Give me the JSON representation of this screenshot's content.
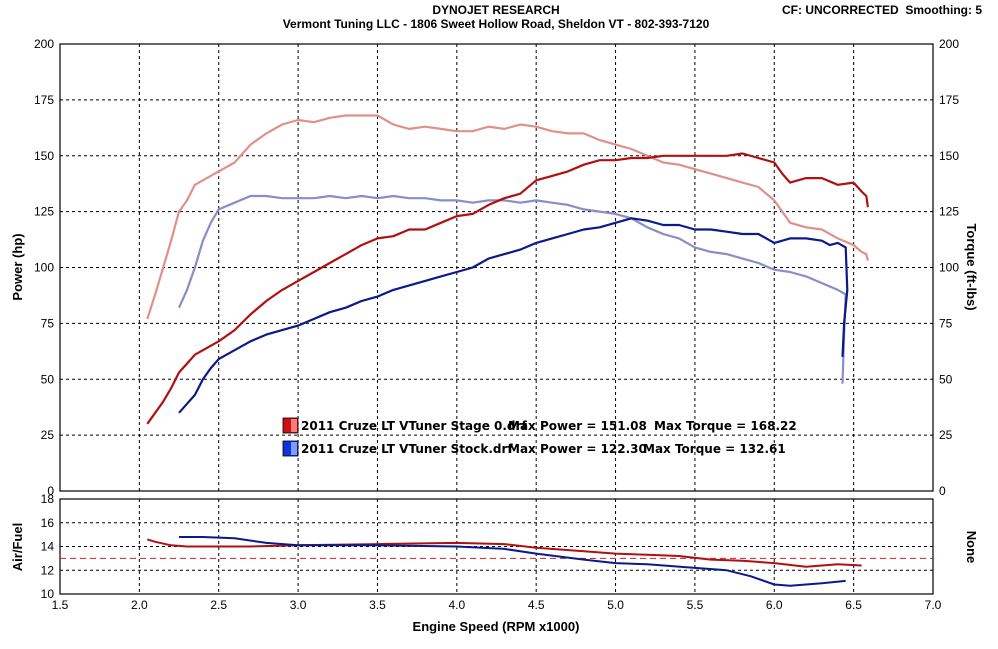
{
  "header": {
    "brand": "DYNOJET RESEARCH",
    "shop": "Vermont Tuning LLC - 1806 Sweet Hollow Road, Sheldon VT - 802-393-7120",
    "correction": "CF: UNCORRECTED  Smoothing: 5"
  },
  "colors": {
    "stage0_power": "#b01010",
    "stage0_torque": "#e0908a",
    "stock_power": "#0a1a8a",
    "stock_torque": "#8a8cc8",
    "afr_ref": "#cc2222",
    "grid": "#000000"
  },
  "chart_data": [
    {
      "type": "line",
      "title": "",
      "xlabel": "",
      "ylabel": "Power (hp)",
      "y2label": "Torque (ft-lbs)",
      "xlim": [
        1.5,
        7.0
      ],
      "ylim": [
        0,
        200
      ],
      "y2lim": [
        0,
        200
      ],
      "xticks": [
        1.5,
        2.0,
        2.5,
        3.0,
        3.5,
        4.0,
        4.5,
        5.0,
        5.5,
        6.0,
        6.5,
        7.0
      ],
      "yticks": [
        0,
        25,
        50,
        75,
        100,
        125,
        150,
        175,
        200
      ],
      "grid": true,
      "legend": [
        {
          "file": "2011 Cruze LT VTuner Stage 0.drf",
          "max_power": "Max Power = 151.08",
          "max_torque": "Max Torque = 168.22"
        },
        {
          "file": "2011 Cruze LT VTuner Stock.drf",
          "max_power": "Max Power = 122.30",
          "max_torque": "Max Torque = 132.61"
        }
      ],
      "series": [
        {
          "key": "stage0_power",
          "points": [
            [
              2.05,
              30
            ],
            [
              2.1,
              35
            ],
            [
              2.15,
              40
            ],
            [
              2.2,
              46
            ],
            [
              2.25,
              53
            ],
            [
              2.3,
              57
            ],
            [
              2.35,
              61
            ],
            [
              2.4,
              63
            ],
            [
              2.5,
              67
            ],
            [
              2.6,
              72
            ],
            [
              2.7,
              79
            ],
            [
              2.8,
              85
            ],
            [
              2.9,
              90
            ],
            [
              3.0,
              94
            ],
            [
              3.1,
              98
            ],
            [
              3.2,
              102
            ],
            [
              3.3,
              106
            ],
            [
              3.4,
              110
            ],
            [
              3.5,
              113
            ],
            [
              3.6,
              114
            ],
            [
              3.7,
              117
            ],
            [
              3.8,
              117
            ],
            [
              3.9,
              120
            ],
            [
              4.0,
              123
            ],
            [
              4.1,
              124
            ],
            [
              4.2,
              128
            ],
            [
              4.3,
              131
            ],
            [
              4.4,
              133
            ],
            [
              4.5,
              139
            ],
            [
              4.6,
              141
            ],
            [
              4.7,
              143
            ],
            [
              4.8,
              146
            ],
            [
              4.9,
              148
            ],
            [
              5.0,
              148
            ],
            [
              5.1,
              149
            ],
            [
              5.2,
              149
            ],
            [
              5.3,
              150
            ],
            [
              5.4,
              150
            ],
            [
              5.5,
              150
            ],
            [
              5.6,
              150
            ],
            [
              5.7,
              150
            ],
            [
              5.8,
              151
            ],
            [
              5.9,
              149
            ],
            [
              6.0,
              147
            ],
            [
              6.05,
              142
            ],
            [
              6.1,
              138
            ],
            [
              6.2,
              140
            ],
            [
              6.3,
              140
            ],
            [
              6.4,
              137
            ],
            [
              6.5,
              138
            ],
            [
              6.55,
              134
            ],
            [
              6.58,
              132
            ],
            [
              6.59,
              127
            ]
          ]
        },
        {
          "key": "stage0_torque",
          "points": [
            [
              2.05,
              77
            ],
            [
              2.1,
              88
            ],
            [
              2.15,
              100
            ],
            [
              2.2,
              112
            ],
            [
              2.25,
              125
            ],
            [
              2.3,
              130
            ],
            [
              2.35,
              137
            ],
            [
              2.4,
              139
            ],
            [
              2.5,
              143
            ],
            [
              2.6,
              147
            ],
            [
              2.7,
              155
            ],
            [
              2.8,
              160
            ],
            [
              2.9,
              164
            ],
            [
              3.0,
              166
            ],
            [
              3.1,
              165
            ],
            [
              3.2,
              167
            ],
            [
              3.3,
              168
            ],
            [
              3.4,
              168
            ],
            [
              3.5,
              168
            ],
            [
              3.6,
              164
            ],
            [
              3.7,
              162
            ],
            [
              3.8,
              163
            ],
            [
              3.9,
              162
            ],
            [
              4.0,
              161
            ],
            [
              4.1,
              161
            ],
            [
              4.2,
              163
            ],
            [
              4.3,
              162
            ],
            [
              4.4,
              164
            ],
            [
              4.5,
              163
            ],
            [
              4.6,
              161
            ],
            [
              4.7,
              160
            ],
            [
              4.8,
              160
            ],
            [
              4.9,
              157
            ],
            [
              5.0,
              155
            ],
            [
              5.1,
              153
            ],
            [
              5.2,
              150
            ],
            [
              5.3,
              147
            ],
            [
              5.4,
              146
            ],
            [
              5.5,
              144
            ],
            [
              5.6,
              142
            ],
            [
              5.7,
              140
            ],
            [
              5.8,
              138
            ],
            [
              5.9,
              136
            ],
            [
              6.0,
              130
            ],
            [
              6.05,
              125
            ],
            [
              6.1,
              120
            ],
            [
              6.2,
              118
            ],
            [
              6.3,
              117
            ],
            [
              6.4,
              113
            ],
            [
              6.5,
              110
            ],
            [
              6.55,
              107
            ],
            [
              6.58,
              106
            ],
            [
              6.59,
              103
            ]
          ]
        },
        {
          "key": "stock_power",
          "points": [
            [
              2.25,
              35
            ],
            [
              2.3,
              39
            ],
            [
              2.35,
              43
            ],
            [
              2.4,
              50
            ],
            [
              2.45,
              55
            ],
            [
              2.5,
              59
            ],
            [
              2.6,
              63
            ],
            [
              2.7,
              67
            ],
            [
              2.8,
              70
            ],
            [
              2.9,
              72
            ],
            [
              3.0,
              74
            ],
            [
              3.1,
              77
            ],
            [
              3.2,
              80
            ],
            [
              3.3,
              82
            ],
            [
              3.4,
              85
            ],
            [
              3.5,
              87
            ],
            [
              3.6,
              90
            ],
            [
              3.7,
              92
            ],
            [
              3.8,
              94
            ],
            [
              3.9,
              96
            ],
            [
              4.0,
              98
            ],
            [
              4.1,
              100
            ],
            [
              4.2,
              104
            ],
            [
              4.3,
              106
            ],
            [
              4.4,
              108
            ],
            [
              4.5,
              111
            ],
            [
              4.6,
              113
            ],
            [
              4.7,
              115
            ],
            [
              4.8,
              117
            ],
            [
              4.9,
              118
            ],
            [
              5.0,
              120
            ],
            [
              5.1,
              122
            ],
            [
              5.2,
              121
            ],
            [
              5.3,
              119
            ],
            [
              5.4,
              119
            ],
            [
              5.5,
              117
            ],
            [
              5.6,
              117
            ],
            [
              5.7,
              116
            ],
            [
              5.8,
              115
            ],
            [
              5.9,
              115
            ],
            [
              6.0,
              111
            ],
            [
              6.1,
              113
            ],
            [
              6.2,
              113
            ],
            [
              6.3,
              112
            ],
            [
              6.35,
              110
            ],
            [
              6.4,
              111
            ],
            [
              6.45,
              109
            ],
            [
              6.46,
              90
            ],
            [
              6.44,
              75
            ],
            [
              6.43,
              60
            ]
          ]
        },
        {
          "key": "stock_torque",
          "points": [
            [
              2.25,
              82
            ],
            [
              2.3,
              90
            ],
            [
              2.35,
              100
            ],
            [
              2.4,
              112
            ],
            [
              2.45,
              120
            ],
            [
              2.5,
              126
            ],
            [
              2.6,
              129
            ],
            [
              2.7,
              132
            ],
            [
              2.8,
              132
            ],
            [
              2.9,
              131
            ],
            [
              3.0,
              131
            ],
            [
              3.1,
              131
            ],
            [
              3.2,
              132
            ],
            [
              3.3,
              131
            ],
            [
              3.4,
              132
            ],
            [
              3.5,
              131
            ],
            [
              3.6,
              132
            ],
            [
              3.7,
              131
            ],
            [
              3.8,
              131
            ],
            [
              3.9,
              130
            ],
            [
              4.0,
              130
            ],
            [
              4.1,
              129
            ],
            [
              4.2,
              130
            ],
            [
              4.3,
              130
            ],
            [
              4.4,
              129
            ],
            [
              4.5,
              130
            ],
            [
              4.6,
              129
            ],
            [
              4.7,
              128
            ],
            [
              4.8,
              126
            ],
            [
              4.9,
              125
            ],
            [
              5.0,
              124
            ],
            [
              5.1,
              122
            ],
            [
              5.2,
              118
            ],
            [
              5.3,
              115
            ],
            [
              5.4,
              113
            ],
            [
              5.5,
              109
            ],
            [
              5.6,
              107
            ],
            [
              5.7,
              106
            ],
            [
              5.8,
              104
            ],
            [
              5.9,
              102
            ],
            [
              6.0,
              99
            ],
            [
              6.1,
              98
            ],
            [
              6.2,
              96
            ],
            [
              6.3,
              93
            ],
            [
              6.4,
              90
            ],
            [
              6.45,
              88
            ],
            [
              6.44,
              70
            ],
            [
              6.43,
              48
            ]
          ]
        }
      ]
    },
    {
      "type": "line",
      "title": "",
      "xlabel": "Engine Speed (RPM x1000)",
      "ylabel": "Air/Fuel",
      "y2label": "None",
      "xlim": [
        1.5,
        7.0
      ],
      "ylim": [
        10,
        18
      ],
      "xticks": [
        1.5,
        2.0,
        2.5,
        3.0,
        3.5,
        4.0,
        4.5,
        5.0,
        5.5,
        6.0,
        6.5,
        7.0
      ],
      "yticks": [
        10,
        12,
        14,
        16,
        18
      ],
      "reference_line": 13.0,
      "grid": true,
      "series": [
        {
          "key": "stage0_afr",
          "points": [
            [
              2.05,
              14.6
            ],
            [
              2.1,
              14.4
            ],
            [
              2.2,
              14.1
            ],
            [
              2.3,
              14.0
            ],
            [
              2.5,
              14.0
            ],
            [
              2.7,
              14.0
            ],
            [
              3.0,
              14.1
            ],
            [
              3.5,
              14.2
            ],
            [
              4.0,
              14.3
            ],
            [
              4.3,
              14.2
            ],
            [
              4.5,
              13.9
            ],
            [
              4.8,
              13.6
            ],
            [
              5.0,
              13.4
            ],
            [
              5.2,
              13.3
            ],
            [
              5.4,
              13.2
            ],
            [
              5.6,
              12.9
            ],
            [
              5.8,
              12.8
            ],
            [
              6.0,
              12.6
            ],
            [
              6.2,
              12.3
            ],
            [
              6.4,
              12.5
            ],
            [
              6.55,
              12.4
            ]
          ]
        },
        {
          "key": "stock_afr",
          "points": [
            [
              2.25,
              14.8
            ],
            [
              2.4,
              14.8
            ],
            [
              2.6,
              14.7
            ],
            [
              2.8,
              14.3
            ],
            [
              3.0,
              14.1
            ],
            [
              3.5,
              14.1
            ],
            [
              4.0,
              14.0
            ],
            [
              4.3,
              13.8
            ],
            [
              4.5,
              13.4
            ],
            [
              4.8,
              12.9
            ],
            [
              5.0,
              12.6
            ],
            [
              5.2,
              12.5
            ],
            [
              5.5,
              12.2
            ],
            [
              5.7,
              12.0
            ],
            [
              5.85,
              11.5
            ],
            [
              6.0,
              10.8
            ],
            [
              6.1,
              10.7
            ],
            [
              6.3,
              10.9
            ],
            [
              6.45,
              11.1
            ]
          ]
        }
      ]
    }
  ]
}
